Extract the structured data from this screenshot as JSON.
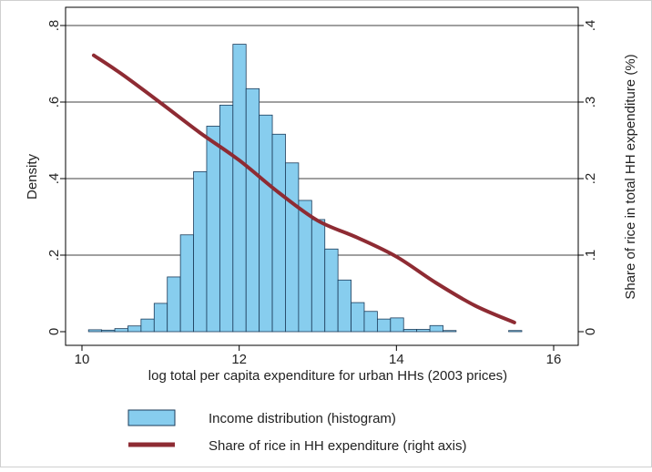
{
  "chart_data": {
    "type": "bar",
    "xlabel": "log total per capita expenditure for urban HHs (2003 prices)",
    "ylabel": "Density",
    "y2label": "Share of rice in total HH expenditure (%)",
    "xlim": [
      10,
      16
    ],
    "ylim": [
      0,
      0.8
    ],
    "y2lim": [
      0,
      0.4
    ],
    "grid": true,
    "legend_position": "bottom",
    "x_ticks": [
      {
        "value": 10,
        "label": "10"
      },
      {
        "value": 12,
        "label": "12"
      },
      {
        "value": 14,
        "label": "14"
      },
      {
        "value": 16,
        "label": "16"
      }
    ],
    "y_ticks": [
      {
        "value": 0,
        "label": "0"
      },
      {
        "value": 0.2,
        "label": ".2"
      },
      {
        "value": 0.4,
        "label": ".4"
      },
      {
        "value": 0.6,
        "label": ".6"
      },
      {
        "value": 0.8,
        "label": ".8"
      }
    ],
    "y2_ticks": [
      {
        "value": 0,
        "label": "0"
      },
      {
        "value": 0.1,
        "label": ".1"
      },
      {
        "value": 0.2,
        "label": ".2"
      },
      {
        "value": 0.3,
        "label": ".3"
      },
      {
        "value": 0.4,
        "label": ".4"
      }
    ],
    "series": [
      {
        "name": "Income distribution (histogram)",
        "type": "bar",
        "axis": "left",
        "color": "#87cdee",
        "edge_color": "#1b3b5a",
        "bin_width": 0.167,
        "bins": [
          {
            "x": 10.167,
            "y": 0.005
          },
          {
            "x": 10.334,
            "y": 0.004
          },
          {
            "x": 10.501,
            "y": 0.008
          },
          {
            "x": 10.668,
            "y": 0.015
          },
          {
            "x": 10.835,
            "y": 0.033
          },
          {
            "x": 11.002,
            "y": 0.074
          },
          {
            "x": 11.169,
            "y": 0.143
          },
          {
            "x": 11.336,
            "y": 0.253
          },
          {
            "x": 11.503,
            "y": 0.418
          },
          {
            "x": 11.67,
            "y": 0.537
          },
          {
            "x": 11.837,
            "y": 0.592
          },
          {
            "x": 12.004,
            "y": 0.751
          },
          {
            "x": 12.171,
            "y": 0.635
          },
          {
            "x": 12.338,
            "y": 0.566
          },
          {
            "x": 12.505,
            "y": 0.516
          },
          {
            "x": 12.672,
            "y": 0.441
          },
          {
            "x": 12.839,
            "y": 0.343
          },
          {
            "x": 13.006,
            "y": 0.293
          },
          {
            "x": 13.173,
            "y": 0.216
          },
          {
            "x": 13.34,
            "y": 0.135
          },
          {
            "x": 13.507,
            "y": 0.076
          },
          {
            "x": 13.674,
            "y": 0.053
          },
          {
            "x": 13.841,
            "y": 0.033
          },
          {
            "x": 14.008,
            "y": 0.036
          },
          {
            "x": 14.175,
            "y": 0.006
          },
          {
            "x": 14.342,
            "y": 0.006
          },
          {
            "x": 14.509,
            "y": 0.016
          },
          {
            "x": 14.676,
            "y": 0.003
          },
          {
            "x": 15.511,
            "y": 0.003
          }
        ]
      },
      {
        "name": "Share of rice in HH expenditure (right axis)",
        "type": "line",
        "axis": "right",
        "color": "#8e2b33",
        "x": [
          10.15,
          10.5,
          11.0,
          11.5,
          12.0,
          12.5,
          13.0,
          13.5,
          14.0,
          14.5,
          15.0,
          15.5
        ],
        "y": [
          0.361,
          0.337,
          0.299,
          0.26,
          0.224,
          0.182,
          0.145,
          0.123,
          0.098,
          0.064,
          0.034,
          0.012
        ]
      }
    ]
  }
}
